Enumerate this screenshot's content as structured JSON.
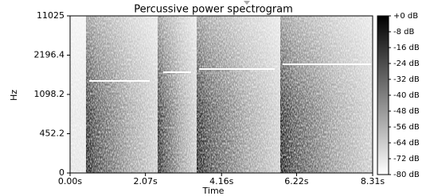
{
  "chart_data": {
    "type": "spectrogram",
    "title": "Percussive power spectrogram",
    "xlabel": "Time",
    "ylabel": "Hz",
    "xlim": [
      0,
      8.31
    ],
    "xticks": [
      {
        "value": 0,
        "label": "0.00s"
      },
      {
        "value": 2.07,
        "label": "2.07s"
      },
      {
        "value": 4.16,
        "label": "4.16s"
      },
      {
        "value": 6.22,
        "label": "6.22s"
      },
      {
        "value": 8.31,
        "label": "8.31s"
      }
    ],
    "yticks": [
      0,
      452.2,
      1098.2,
      2196.4,
      11025
    ],
    "colormap": "gray_r",
    "colorbar": {
      "lim": [
        -80,
        0
      ],
      "ticks": [
        {
          "value": 0,
          "label": "+0 dB"
        },
        {
          "value": -8,
          "label": "-8 dB"
        },
        {
          "value": -16,
          "label": "-16 dB"
        },
        {
          "value": -24,
          "label": "-24 dB"
        },
        {
          "value": -32,
          "label": "-32 dB"
        },
        {
          "value": -40,
          "label": "-40 dB"
        },
        {
          "value": -48,
          "label": "-48 dB"
        },
        {
          "value": -56,
          "label": "-56 dB"
        },
        {
          "value": -64,
          "label": "-64 dB"
        },
        {
          "value": -72,
          "label": "-72 dB"
        },
        {
          "value": -80,
          "label": "-80 dB"
        }
      ]
    }
  }
}
